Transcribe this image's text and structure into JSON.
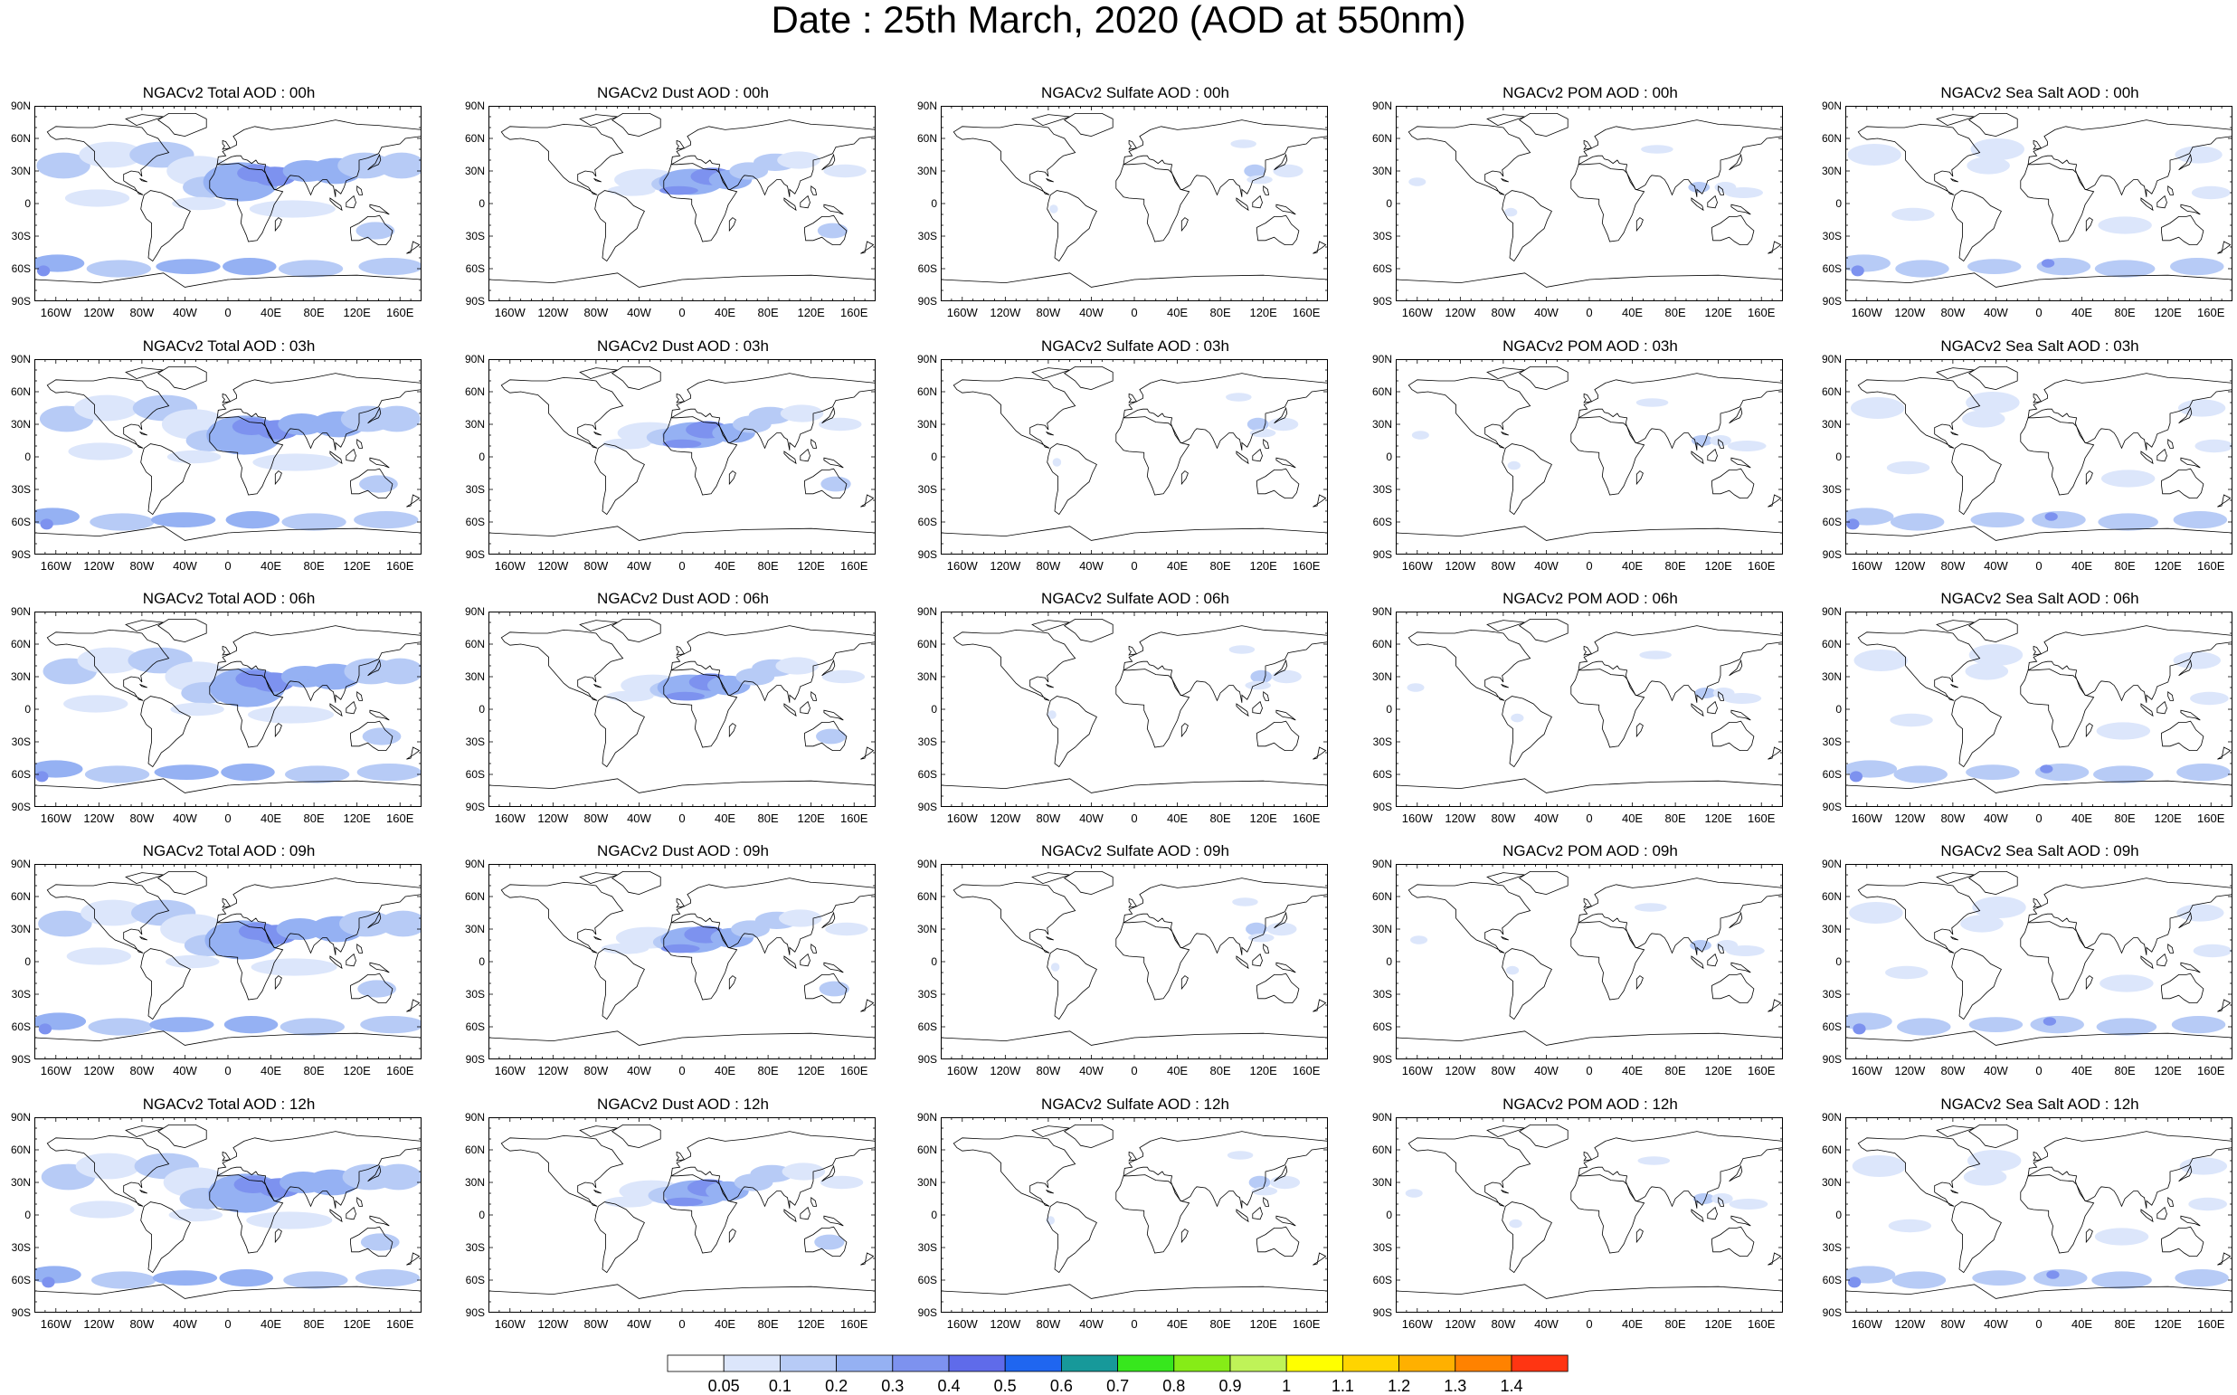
{
  "title": "Date : 25th March, 2020 (AOD at 550nm)",
  "panels": [
    [
      "NGACv2 Total AOD : 00h",
      "NGACv2 Dust AOD : 00h",
      "NGACv2 Sulfate AOD : 00h",
      "NGACv2 POM AOD : 00h",
      "NGACv2 Sea Salt AOD : 00h"
    ],
    [
      "NGACv2 Total AOD : 03h",
      "NGACv2 Dust AOD : 03h",
      "NGACv2 Sulfate AOD : 03h",
      "NGACv2 POM AOD : 03h",
      "NGACv2 Sea Salt AOD : 03h"
    ],
    [
      "NGACv2 Total AOD : 06h",
      "NGACv2 Dust AOD : 06h",
      "NGACv2 Sulfate AOD : 06h",
      "NGACv2 POM AOD : 06h",
      "NGACv2 Sea Salt AOD : 06h"
    ],
    [
      "NGACv2 Total AOD : 09h",
      "NGACv2 Dust AOD : 09h",
      "NGACv2 Sulfate AOD : 09h",
      "NGACv2 POM AOD : 09h",
      "NGACv2 Sea Salt  AOD : 09h"
    ],
    [
      "NGACv2 Total AOD  : 12h",
      "NGACv2 Dust AOD : 12h",
      "NGACv2 Sulfate AOD : 12h",
      "NGACv2 POM  AOD : 12h",
      "NGACv2 Sea Salt  AOD : 12h"
    ]
  ],
  "species": [
    "total",
    "dust",
    "sulfate",
    "pom",
    "seasalt"
  ],
  "lat_labels": [
    "90N",
    "60N",
    "30N",
    "0",
    "30S",
    "60S",
    "90S"
  ],
  "lon_labels": [
    "160W",
    "120W",
    "80W",
    "40W",
    "0",
    "40E",
    "80E",
    "120E",
    "160E"
  ],
  "colorbar": {
    "labels": [
      "0.05",
      "0.1",
      "0.2",
      "0.3",
      "0.4",
      "0.5",
      "0.6",
      "0.7",
      "0.8",
      "0.9",
      "1",
      "1.1",
      "1.2",
      "1.3",
      "1.4"
    ],
    "colors": [
      "#ffffff",
      "#dce6fb",
      "#b7cbf6",
      "#95b1f3",
      "#7d92ef",
      "#5f6bea",
      "#1f66f0",
      "#17999a",
      "#37e71d",
      "#86ec17",
      "#bff358",
      "#ffff00",
      "#ffd400",
      "#ffb000",
      "#ff8200",
      "#ff3512"
    ]
  }
}
